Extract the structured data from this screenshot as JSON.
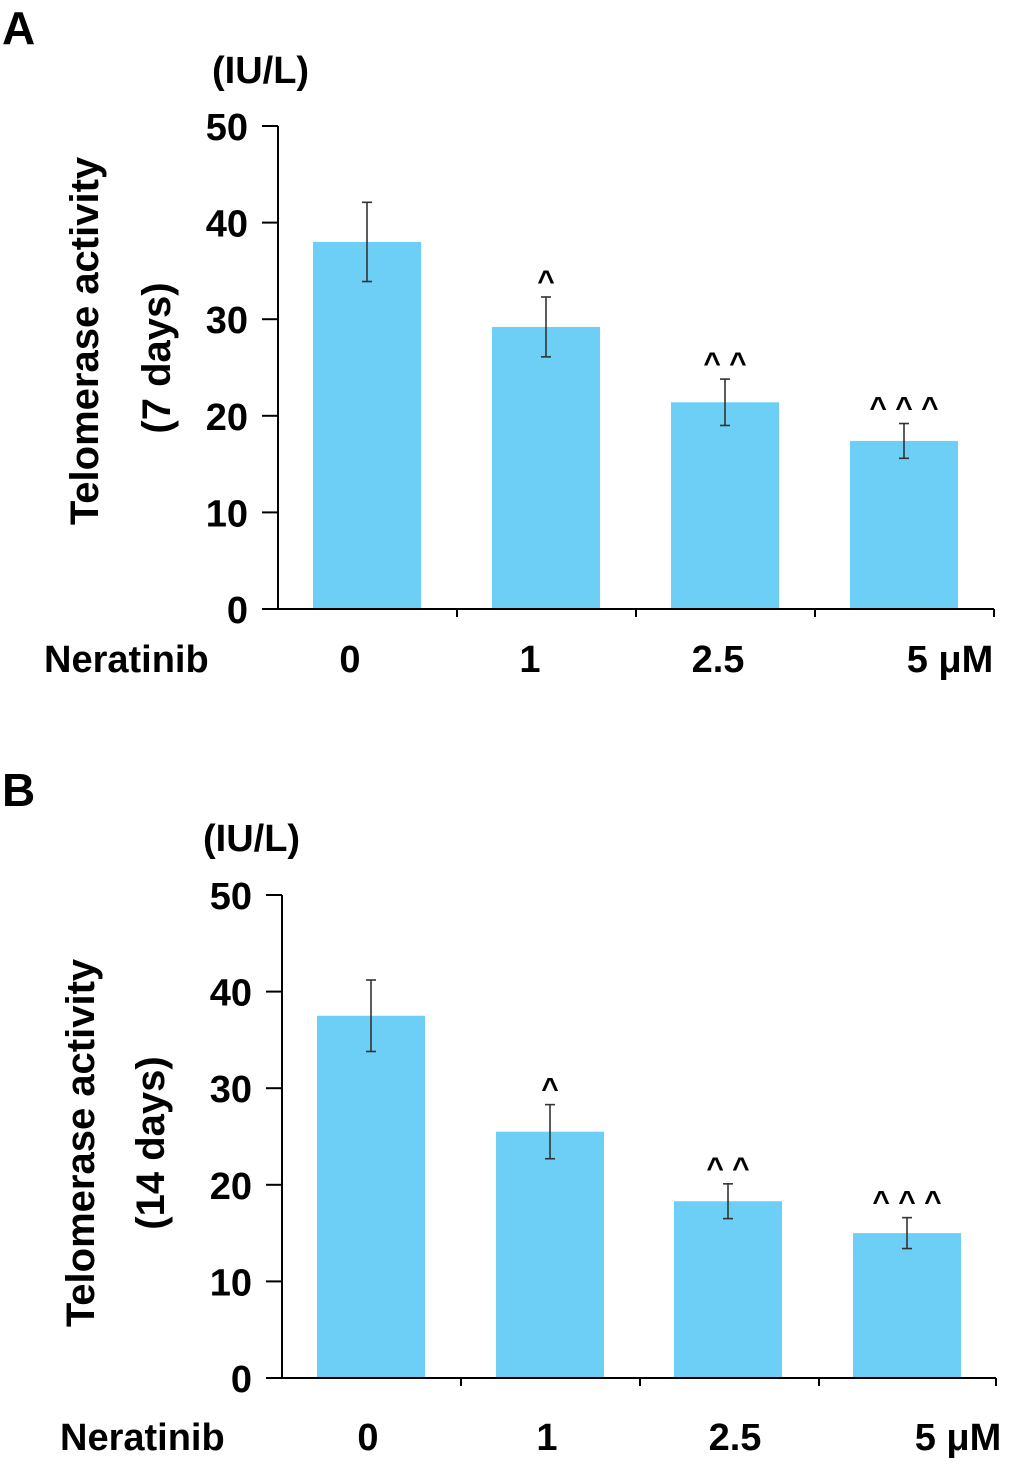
{
  "chart_data": [
    {
      "panel": "A",
      "type": "bar",
      "unit_label": "(IU/L)",
      "ylabel_lines": [
        "Telomerase activity",
        "(7 days)"
      ],
      "xlabel": "Neratinib",
      "categories": [
        "0",
        "1",
        "2.5",
        "5 μM"
      ],
      "values": [
        38,
        29.2,
        21.4,
        17.4
      ],
      "errors": [
        4.1,
        3.1,
        2.4,
        1.8
      ],
      "significance": [
        "",
        "^",
        "^ ^",
        "^ ^ ^"
      ],
      "yticks": [
        0,
        10,
        20,
        30,
        40,
        50
      ],
      "ylim": [
        0,
        50
      ],
      "bar_color": "#6ecff6"
    },
    {
      "panel": "B",
      "type": "bar",
      "unit_label": "(IU/L)",
      "ylabel_lines": [
        "Telomerase activity",
        "(14 days)"
      ],
      "xlabel": "Neratinib",
      "categories": [
        "0",
        "1",
        "2.5",
        "5 μM"
      ],
      "values": [
        37.5,
        25.5,
        18.3,
        15
      ],
      "errors": [
        3.7,
        2.8,
        1.8,
        1.6
      ],
      "significance": [
        "",
        "^",
        "^ ^",
        "^ ^ ^"
      ],
      "yticks": [
        0,
        10,
        20,
        30,
        40,
        50
      ],
      "ylim": [
        0,
        50
      ],
      "bar_color": "#6ecff6"
    }
  ]
}
